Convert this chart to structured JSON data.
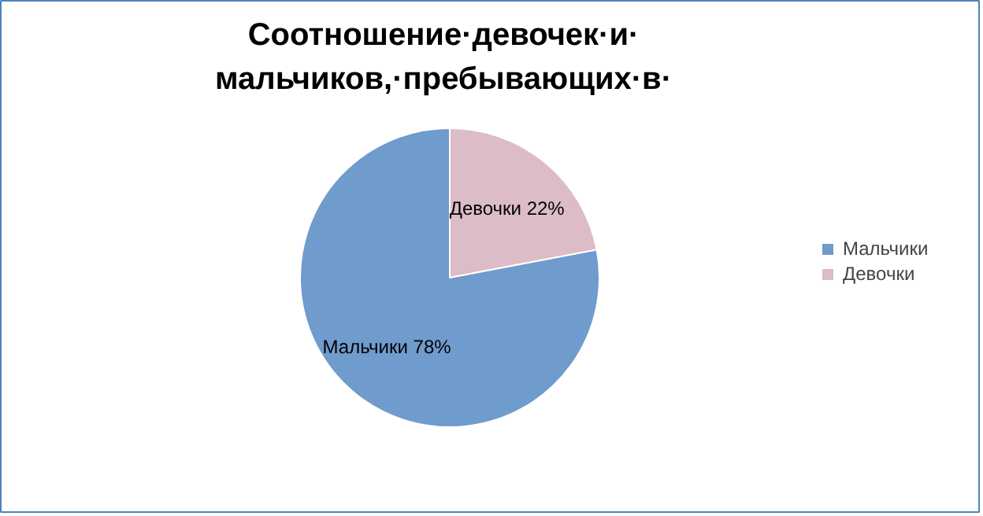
{
  "chart_data": {
    "type": "pie",
    "title": "Соотношение·девочек·и·\nмальчиков,·пребывающих·в·",
    "categories": [
      "Мальчики",
      "Девочки"
    ],
    "values": [
      78,
      22
    ],
    "colors": [
      "#6f9bcd",
      "#dcbcc6"
    ],
    "value_labels": [
      "Мальчики 78%",
      "Девочки 22%"
    ],
    "legend": "right"
  }
}
